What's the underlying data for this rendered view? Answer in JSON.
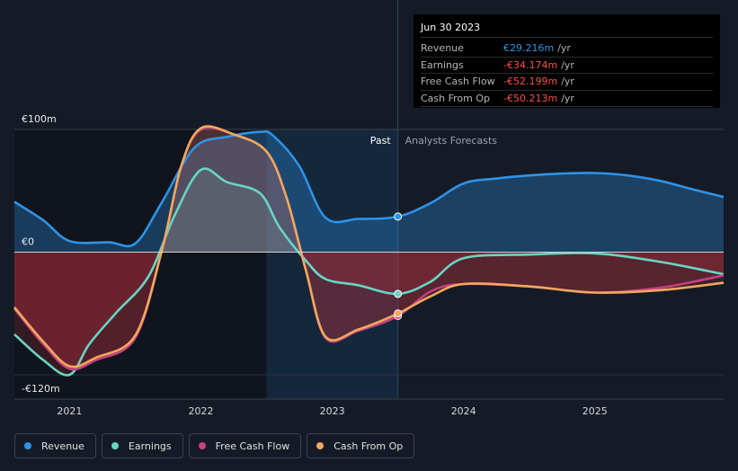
{
  "chart_data": {
    "type": "area",
    "x_range": [
      2020.58,
      2025.98
    ],
    "ylim": [
      -120,
      100
    ],
    "y_tick_labels": [
      "€100m",
      "€0",
      "-€120m"
    ],
    "y_tick_values": [
      100,
      0,
      -120
    ],
    "x_ticks": [
      2021,
      2022,
      2023,
      2024,
      2025
    ],
    "x_tick_labels": [
      "2021",
      "2022",
      "2023",
      "2024",
      "2025"
    ],
    "past_label": "Past",
    "forecast_label": "Analysts Forecasts",
    "highlight_range": [
      2022.5,
      2023.5
    ],
    "divider_x": 2023.5,
    "series": [
      {
        "name": "Revenue",
        "color": "#2e93e6",
        "x": [
          2020.58,
          2020.8,
          2021.0,
          2021.3,
          2021.5,
          2021.7,
          2021.95,
          2022.2,
          2022.45,
          2022.55,
          2022.75,
          2022.95,
          2023.2,
          2023.5,
          2023.75,
          2024.0,
          2024.25,
          2024.5,
          2024.75,
          2025.0,
          2025.25,
          2025.5,
          2025.75,
          2025.98
        ],
        "y": [
          41,
          26,
          9,
          8,
          7,
          40,
          85,
          94,
          98,
          95,
          70,
          28,
          27,
          29,
          40,
          56,
          60,
          62.5,
          64,
          64.5,
          62.5,
          58,
          51,
          45
        ]
      },
      {
        "name": "Earnings",
        "color": "#67d6c4",
        "x": [
          2020.58,
          2020.8,
          2021.0,
          2021.15,
          2021.35,
          2021.6,
          2021.8,
          2022.0,
          2022.2,
          2022.45,
          2022.6,
          2022.8,
          2022.95,
          2023.2,
          2023.5,
          2023.75,
          2024.0,
          2024.5,
          2025.0,
          2025.5,
          2025.98
        ],
        "y": [
          -67,
          -88,
          -100,
          -75,
          -50,
          -20,
          30,
          67,
          57,
          48,
          20,
          -7,
          -22,
          -27,
          -34,
          -24,
          -5,
          -2,
          -1,
          -8,
          -18
        ]
      },
      {
        "name": "Free Cash Flow",
        "color": "#c7407f",
        "x": [
          2020.58,
          2020.8,
          2021.0,
          2021.2,
          2021.5,
          2021.7,
          2021.85,
          2022.0,
          2022.25,
          2022.5,
          2022.65,
          2022.8,
          2022.95,
          2023.2,
          2023.5,
          2023.75,
          2024.0,
          2024.5,
          2025.0,
          2025.5,
          2025.98
        ],
        "y": [
          -46,
          -75,
          -95,
          -88,
          -70,
          0,
          70,
          100,
          96,
          82,
          45,
          -15,
          -70,
          -64,
          -52,
          -32,
          -26,
          -28,
          -33,
          -29,
          -19
        ]
      },
      {
        "name": "Cash From Op",
        "color": "#f1a85d",
        "x": [
          2020.58,
          2020.8,
          2021.0,
          2021.2,
          2021.5,
          2021.7,
          2021.85,
          2022.0,
          2022.25,
          2022.5,
          2022.65,
          2022.8,
          2022.95,
          2023.2,
          2023.5,
          2023.75,
          2024.0,
          2024.5,
          2025.0,
          2025.5,
          2025.98
        ],
        "y": [
          -45,
          -73,
          -93,
          -86,
          -68,
          0,
          70,
          101,
          96,
          82,
          45,
          -15,
          -69,
          -63,
          -50,
          -36,
          -26,
          -28,
          -33,
          -31,
          -25
        ]
      }
    ]
  },
  "tooltip": {
    "date": "Jun 30 2023",
    "rows": [
      {
        "label": "Revenue",
        "value": "€29.216m",
        "unit": "/yr",
        "color": "#2e93e6"
      },
      {
        "label": "Earnings",
        "value": "-€34.174m",
        "unit": "/yr",
        "color": "#ff4d4d"
      },
      {
        "label": "Free Cash Flow",
        "value": "-€52.199m",
        "unit": "/yr",
        "color": "#ff4d4d"
      },
      {
        "label": "Cash From Op",
        "value": "-€50.213m",
        "unit": "/yr",
        "color": "#ff4d4d"
      }
    ]
  },
  "legend": [
    {
      "label": "Revenue",
      "color": "#2e93e6"
    },
    {
      "label": "Earnings",
      "color": "#67d6c4"
    },
    {
      "label": "Free Cash Flow",
      "color": "#c7407f"
    },
    {
      "label": "Cash From Op",
      "color": "#f1a85d"
    }
  ]
}
